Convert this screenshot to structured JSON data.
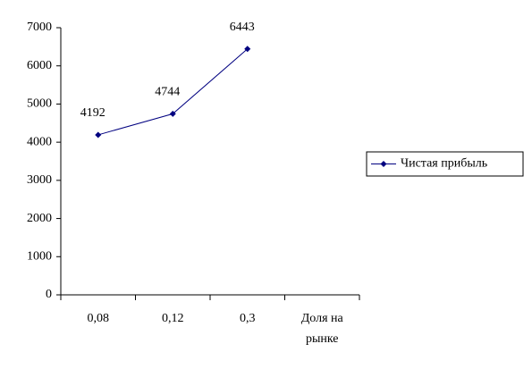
{
  "chart_data": {
    "type": "line",
    "categories": [
      "0,08",
      "0,12",
      "0,3",
      "Доля на рынке"
    ],
    "series": [
      {
        "name": "Чистая прибыль",
        "color": "#000080",
        "values": [
          4192,
          4744,
          6443,
          null
        ]
      }
    ],
    "ylim": [
      0,
      7000
    ],
    "yticks": [
      0,
      1000,
      2000,
      3000,
      4000,
      5000,
      6000,
      7000
    ],
    "grid": false,
    "legend": "right",
    "data_labels": true
  }
}
